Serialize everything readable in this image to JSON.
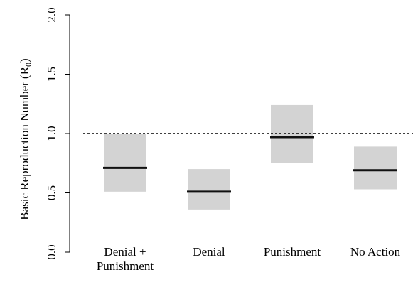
{
  "chart_data": {
    "type": "box-range",
    "ylabel": "Basic Reproduction Number (R",
    "ylabel_sub": "0",
    "ylabel_close": ")",
    "ylim": [
      0.0,
      2.0
    ],
    "yticks": [
      {
        "value": 0.0,
        "label": "0.0"
      },
      {
        "value": 0.5,
        "label": "0.5"
      },
      {
        "value": 1.0,
        "label": "1.0"
      },
      {
        "value": 1.5,
        "label": "1.5"
      },
      {
        "value": 2.0,
        "label": "2.0"
      }
    ],
    "reference_line": {
      "value": 1.0,
      "style": "dotted"
    },
    "box_color": "#d3d3d3",
    "median_color": "#111111",
    "categories": [
      {
        "lines": [
          "Denial +",
          "Punishment"
        ],
        "low": 0.51,
        "median": 0.71,
        "high": 1.0
      },
      {
        "lines": [
          "Denial"
        ],
        "low": 0.36,
        "median": 0.51,
        "high": 0.7
      },
      {
        "lines": [
          "Punishment"
        ],
        "low": 0.75,
        "median": 0.97,
        "high": 1.24
      },
      {
        "lines": [
          "No Action"
        ],
        "low": 0.53,
        "median": 0.69,
        "high": 0.89
      }
    ]
  }
}
